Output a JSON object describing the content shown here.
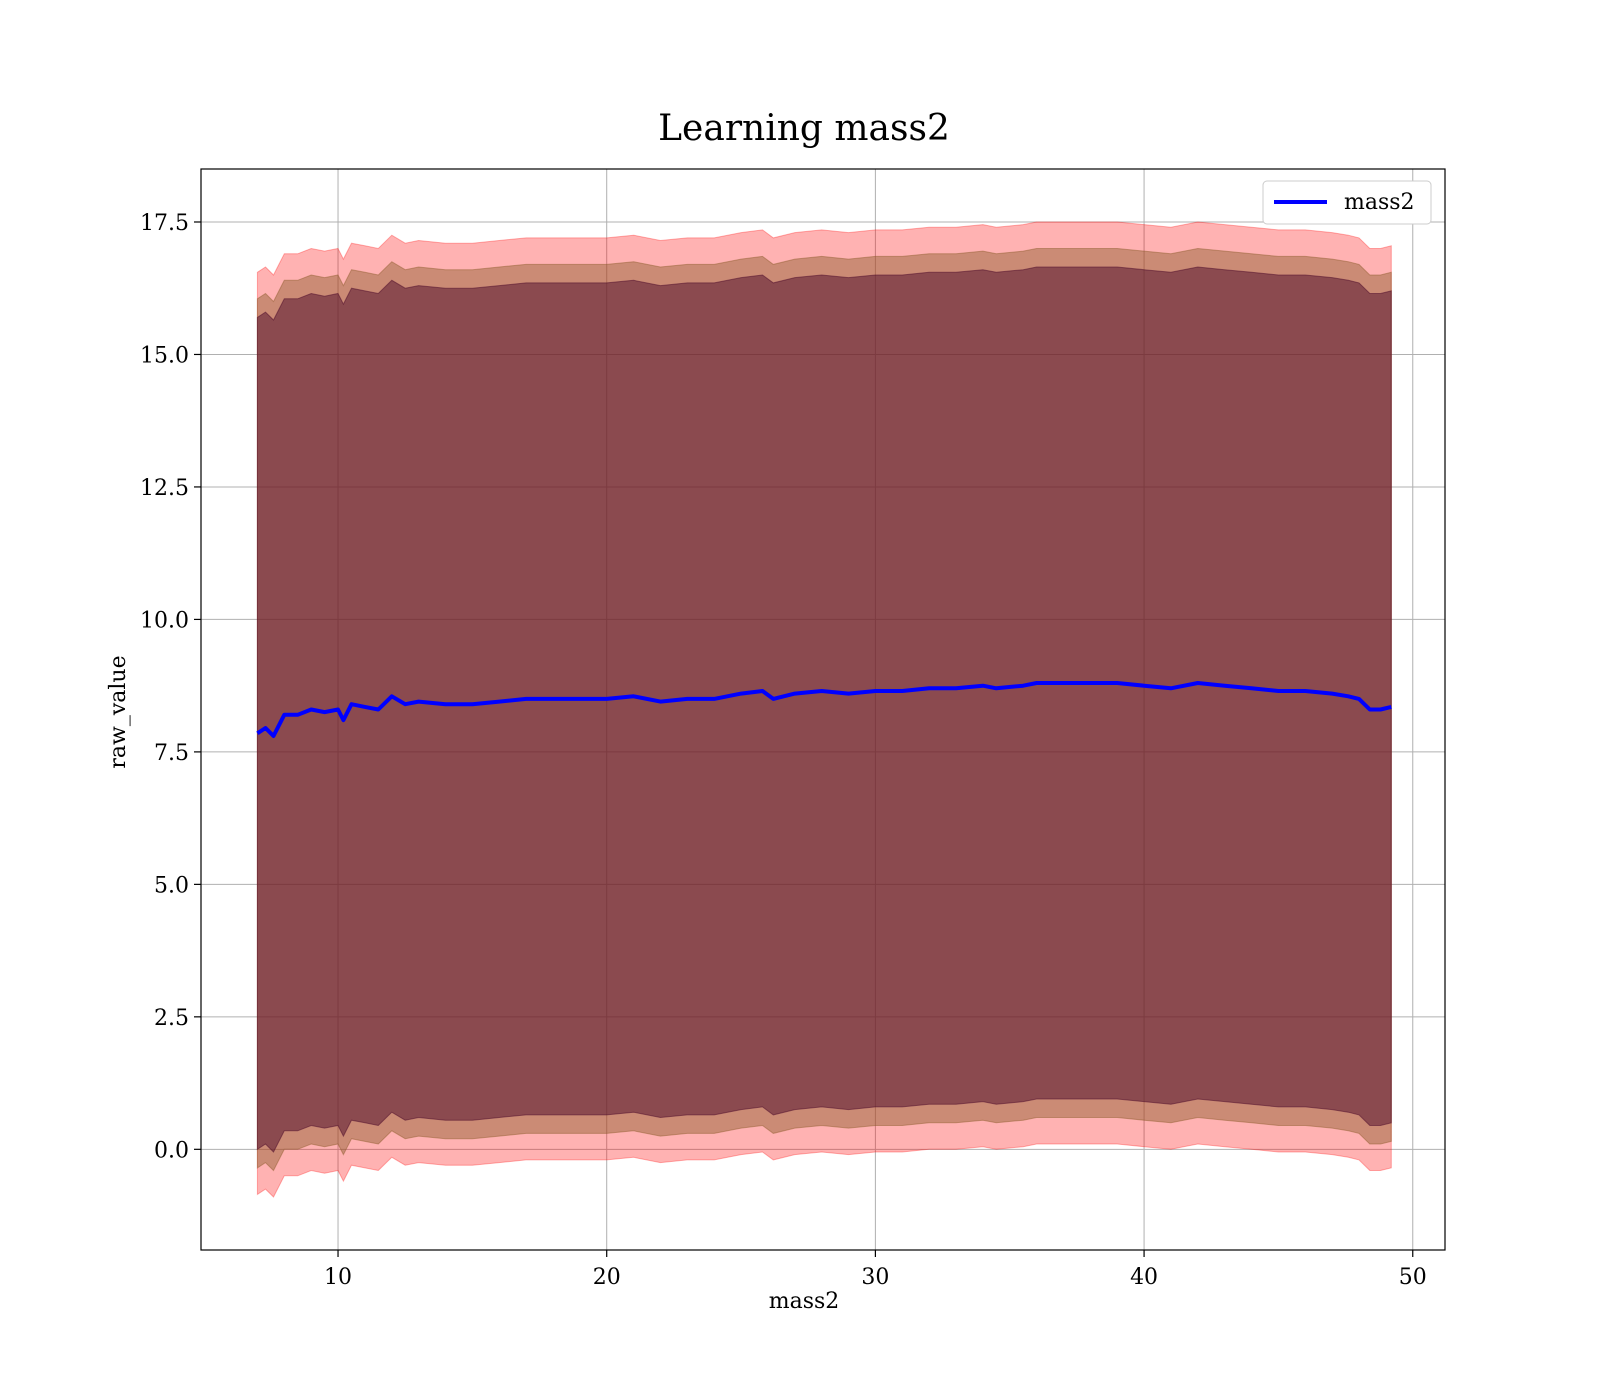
{
  "chart_data": {
    "type": "line",
    "title": "Learning mass2",
    "xlabel": "mass2",
    "ylabel": "raw_value",
    "xlim": [
      4.9,
      51.2
    ],
    "ylim": [
      -1.9,
      18.5
    ],
    "xticks": [
      10,
      20,
      30,
      40,
      50
    ],
    "yticks": [
      0.0,
      2.5,
      5.0,
      7.5,
      10.0,
      12.5,
      15.0,
      17.5
    ],
    "xtick_labels": [
      "10",
      "20",
      "30",
      "40",
      "50"
    ],
    "ytick_labels": [
      "0.0",
      "2.5",
      "5.0",
      "7.5",
      "10.0",
      "12.5",
      "15.0",
      "17.5"
    ],
    "grid": true,
    "legend": {
      "position": "top-right",
      "entries": [
        "mass2"
      ]
    },
    "colors": {
      "line": "#0000ff",
      "band_outer": "#ff0000",
      "band_inner": "#8b5a2b",
      "band_core": "#4b0a2a",
      "grid": "#b0b0b0"
    },
    "series": [
      {
        "name": "mass2",
        "x": [
          7.0,
          7.3,
          7.6,
          8.0,
          8.5,
          9.0,
          9.5,
          10.0,
          10.2,
          10.5,
          11.0,
          11.5,
          12.0,
          12.5,
          13.0,
          14.0,
          15.0,
          16.0,
          17.0,
          18.0,
          19.0,
          20.0,
          21.0,
          22.0,
          23.0,
          24.0,
          25.0,
          25.8,
          26.2,
          27.0,
          28.0,
          29.0,
          30.0,
          31.0,
          32.0,
          33.0,
          34.0,
          34.5,
          35.5,
          36.0,
          37.0,
          38.0,
          39.0,
          40.0,
          41.0,
          42.0,
          43.0,
          44.0,
          45.0,
          46.0,
          47.0,
          47.6,
          48.0,
          48.4,
          48.8,
          49.2
        ],
        "values": [
          7.85,
          7.95,
          7.8,
          8.2,
          8.2,
          8.3,
          8.25,
          8.3,
          8.1,
          8.4,
          8.35,
          8.3,
          8.55,
          8.4,
          8.45,
          8.4,
          8.4,
          8.45,
          8.5,
          8.5,
          8.5,
          8.5,
          8.55,
          8.45,
          8.5,
          8.5,
          8.6,
          8.65,
          8.5,
          8.6,
          8.65,
          8.6,
          8.65,
          8.65,
          8.7,
          8.7,
          8.75,
          8.7,
          8.75,
          8.8,
          8.8,
          8.8,
          8.8,
          8.75,
          8.7,
          8.8,
          8.75,
          8.7,
          8.65,
          8.65,
          8.6,
          8.55,
          8.5,
          8.3,
          8.3,
          8.35
        ],
        "band_outer": {
          "offset": 8.7
        },
        "band_inner": {
          "offset": 8.2
        },
        "band_core": {
          "offset": 7.85
        }
      }
    ]
  }
}
